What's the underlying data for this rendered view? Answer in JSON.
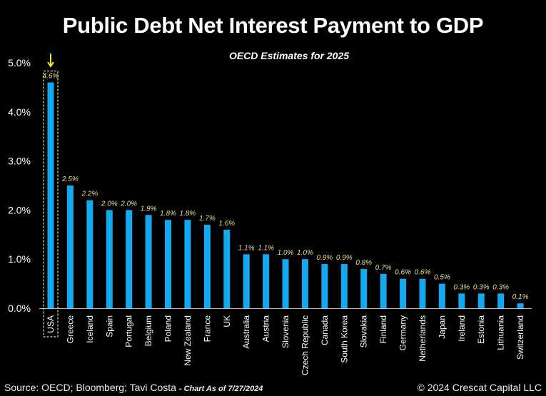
{
  "title": "Public Debt Net Interest Payment to GDP",
  "subtitle": "OECD Estimates for 2025",
  "source": "Source: OECD; Bloomberg; Tavi Costa",
  "as_of": "- Chart As of 7/27/2024",
  "copyright": "© 2024 Crescat Capital LLC",
  "colors": {
    "bar": "#13a9ef",
    "data_label": "#e8df9a",
    "arrow": "#f5ec2a",
    "highlight_box": "#e8df9a",
    "background": "#000000"
  },
  "chart_data": {
    "type": "bar",
    "title": "Public Debt Net Interest Payment to GDP",
    "subtitle": "OECD Estimates for 2025",
    "xlabel": "",
    "ylabel": "",
    "ylim": [
      0,
      5
    ],
    "y_ticks": [
      "0.0%",
      "1.0%",
      "2.0%",
      "3.0%",
      "4.0%",
      "5.0%"
    ],
    "grid": false,
    "highlight": "USA",
    "categories": [
      "USA",
      "Greece",
      "Iceland",
      "Spain",
      "Portugal",
      "Belgium",
      "Poland",
      "New Zealand",
      "France",
      "UK",
      "Australia",
      "Austria",
      "Slovenia",
      "Czech Republic",
      "Canada",
      "South Korea",
      "Slovakia",
      "Finland",
      "Germany",
      "Netherlands",
      "Japan",
      "Ireland",
      "Estonia",
      "Lithuania",
      "Switzerland"
    ],
    "values": [
      4.6,
      2.5,
      2.2,
      2.0,
      2.0,
      1.9,
      1.8,
      1.8,
      1.7,
      1.6,
      1.1,
      1.1,
      1.0,
      1.0,
      0.9,
      0.9,
      0.8,
      0.7,
      0.6,
      0.6,
      0.5,
      0.3,
      0.3,
      0.3,
      0.1
    ],
    "data_labels": [
      "4.6%",
      "2.5%",
      "2.2%",
      "2.0%",
      "2.0%",
      "1.9%",
      "1.8%",
      "1.8%",
      "1.7%",
      "1.6%",
      "1.1%",
      "1.1%",
      "1.0%",
      "1.0%",
      "0.9%",
      "0.9%",
      "0.8%",
      "0.7%",
      "0.6%",
      "0.6%",
      "0.5%",
      "0.3%",
      "0.3%",
      "0.3%",
      "0.1%"
    ]
  }
}
